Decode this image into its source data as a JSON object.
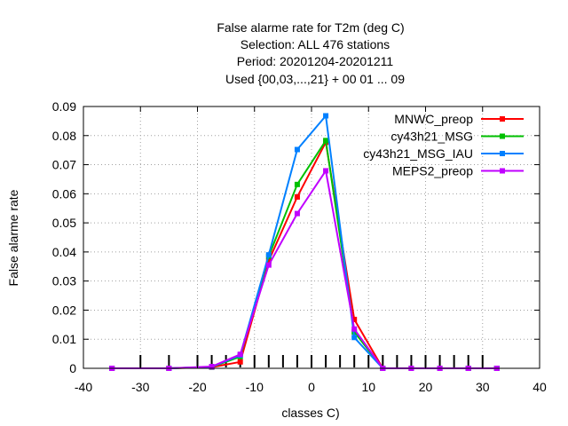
{
  "chart_data": {
    "type": "line",
    "title_lines": [
      "False alarme rate  for T2m (deg C)",
      "Selection: ALL    476 stations",
      "Period: 20201204-20201211",
      "Used {00,03,...,21} + 00 01 ... 09"
    ],
    "xlabel": "classes C)",
    "ylabel": "False alarme rate",
    "xlim": [
      -40,
      40
    ],
    "ylim": [
      0,
      0.09
    ],
    "xticks": [
      -40,
      -30,
      -20,
      -10,
      0,
      10,
      20,
      30,
      40
    ],
    "xtick_labels": [
      "-40",
      "-30",
      "-20",
      "-10",
      "0",
      "10",
      "20",
      "30",
      "40"
    ],
    "yticks": [
      0,
      0.01,
      0.02,
      0.03,
      0.04,
      0.05,
      0.06,
      0.07,
      0.08,
      0.09
    ],
    "ytick_labels": [
      "0",
      "0.01",
      "0.02",
      "0.03",
      "0.04",
      "0.05",
      "0.06",
      "0.07",
      "0.08",
      "0.09"
    ],
    "grid": true,
    "legend_position": "top-right",
    "class_marks": [
      -30,
      -25,
      -20,
      -17.5,
      -15,
      -12.5,
      -10,
      -7.5,
      -5,
      -2.5,
      0,
      2.5,
      5,
      7.5,
      10,
      12.5,
      15,
      17.5,
      20,
      22.5,
      25,
      27.5,
      30
    ],
    "x": [
      -35,
      -25,
      -17.5,
      -12.5,
      -7.5,
      -2.5,
      2.5,
      7.5,
      12.5,
      17.5,
      22.5,
      27.5,
      32.5
    ],
    "series": [
      {
        "name": "MNWC_preop",
        "color": "#ff0000",
        "values": [
          0,
          0,
          0.0004,
          0.0022,
          0.037,
          0.0589,
          0.0777,
          0.0168,
          0,
          0,
          0,
          0,
          0
        ]
      },
      {
        "name": "cy43h21_MSG",
        "color": "#00c000",
        "values": [
          0,
          0,
          0.0005,
          0.004,
          0.0385,
          0.0632,
          0.0783,
          0.0125,
          0,
          0,
          0,
          0,
          0
        ]
      },
      {
        "name": "cy43h21_MSG_IAU",
        "color": "#0080ff",
        "values": [
          0,
          0,
          0.0005,
          0.0045,
          0.039,
          0.0752,
          0.0868,
          0.0106,
          0,
          0,
          0,
          0,
          0
        ]
      },
      {
        "name": "MEPS2_preop",
        "color": "#c000ff",
        "values": [
          0,
          0,
          0.0006,
          0.0048,
          0.0355,
          0.0532,
          0.0679,
          0.0135,
          0,
          0,
          0,
          0,
          0
        ]
      }
    ]
  }
}
